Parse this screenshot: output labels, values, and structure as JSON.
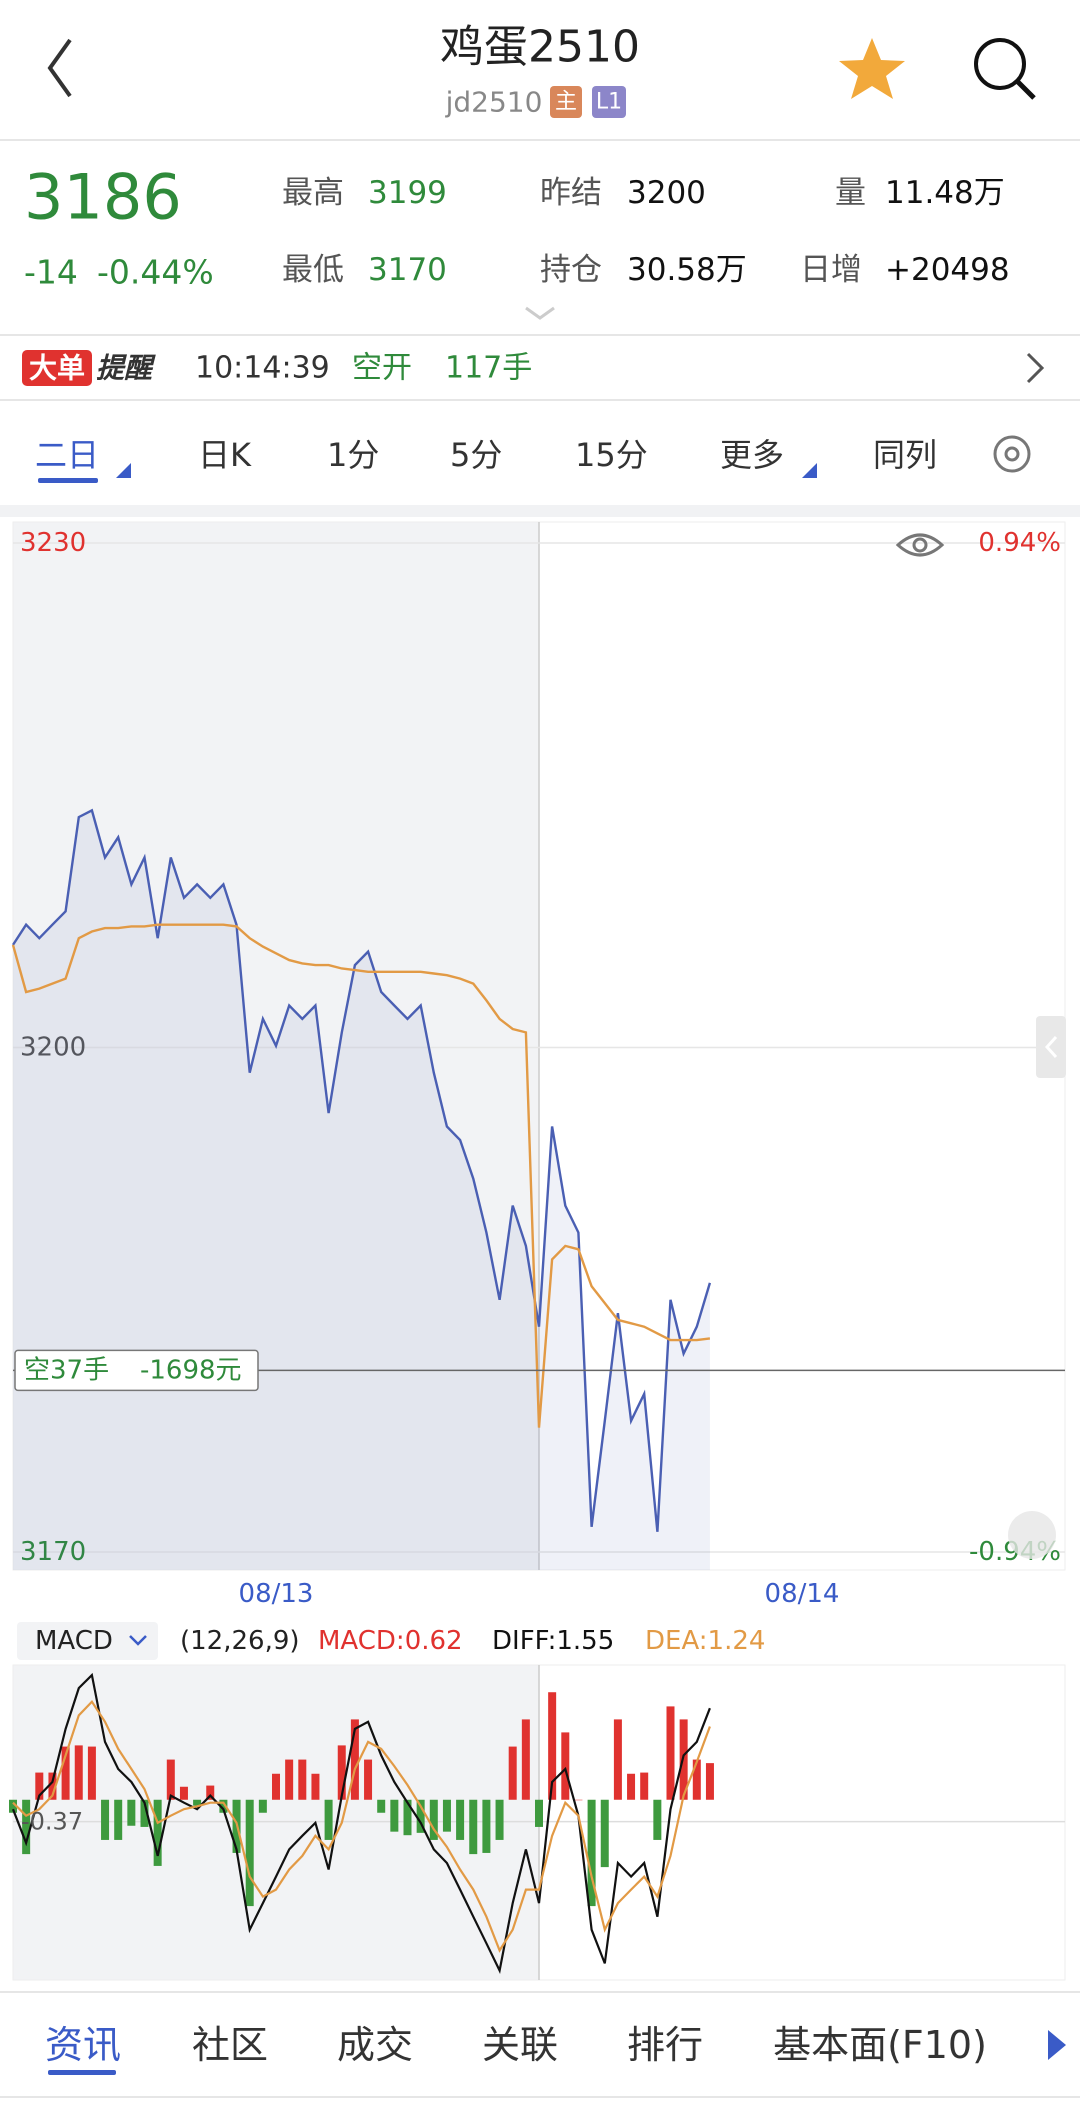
{
  "header": {
    "title": "鸡蛋2510",
    "code": "jd2510",
    "badges": [
      "主",
      "L1"
    ]
  },
  "quote": {
    "price": 3186,
    "change": -14,
    "change_pct": "-0.44%",
    "fields": [
      {
        "label": "最高",
        "value": 3199
      },
      {
        "label": "最低",
        "value": 3170
      },
      {
        "label": "昨结",
        "value": 3200
      },
      {
        "label": "持仓",
        "value": "30.58万"
      },
      {
        "label": "量",
        "value": "11.48万"
      },
      {
        "label": "日增",
        "value": "+20498"
      }
    ]
  },
  "alert": {
    "tag": "大单",
    "title": "提醒",
    "time": "10:14:39",
    "action": "空开",
    "volume": "117手"
  },
  "tabs": [
    "二日",
    "日K",
    "1分",
    "5分",
    "15分",
    "更多",
    "同列"
  ],
  "bottom_tabs": [
    "资讯",
    "社区",
    "成交",
    "关联",
    "排行",
    "基本面(F10)"
  ],
  "chart_data": [
    {
      "type": "line",
      "x": [
        0,
        0.025,
        0.05,
        0.075,
        0.1,
        0.125,
        0.15,
        0.175,
        0.2,
        0.225,
        0.25,
        0.275,
        0.3,
        0.325,
        0.35,
        0.375,
        0.4,
        0.425,
        0.45,
        0.475,
        0.5,
        0.525,
        0.55,
        0.575,
        0.6,
        0.625,
        0.65,
        0.675,
        0.7,
        0.725,
        0.75,
        0.775,
        0.8,
        0.825,
        0.85,
        0.875,
        0.9,
        0.925,
        0.95,
        0.975,
        1,
        1.025,
        1.05,
        1.075,
        1.1,
        1.125,
        1.15,
        1.175,
        1.2,
        1.225,
        1.25,
        1.275,
        1.3,
        1.325
      ],
      "xlim": [
        0,
        2
      ],
      "xticks": [
        {
          "value": 0.5,
          "label": "08/13"
        },
        {
          "value": 1.5,
          "label": "08/14"
        }
      ],
      "ylim": [
        3170,
        3230
      ],
      "yticks": [
        3230,
        3200,
        3170
      ],
      "y2lim": [
        -0.94,
        0.94
      ],
      "y2ticks": [
        {
          "value": 0.94,
          "label": "0.94%"
        },
        {
          "value": -0.94,
          "label": "-0.94%"
        }
      ],
      "series": [
        {
          "color": "#4a5fb3",
          "values": [
            3206.1,
            3207.3,
            3206.5,
            3207.3,
            3208.1,
            3213.7,
            3214.1,
            3211.3,
            3212.5,
            3209.7,
            3211.3,
            3206.5,
            3211.3,
            3208.9,
            3209.7,
            3208.9,
            3209.7,
            3207.3,
            3198.5,
            3201.7,
            3200.1,
            3202.5,
            3201.7,
            3202.5,
            3196.1,
            3200.9,
            3204.9,
            3205.7,
            3203.3,
            3202.5,
            3201.7,
            3202.5,
            3198.5,
            3195.3,
            3194.5,
            3192.2,
            3189.0,
            3185.0,
            3190.6,
            3188.2,
            3183.4,
            3195.3,
            3190.6,
            3189.0,
            3171.5,
            3177.8,
            3184.2,
            3177.8,
            3179.4,
            3171.2,
            3185.0,
            3181.8,
            3183.4,
            3186
          ]
        },
        {
          "color": "#e29a45",
          "values": [
            3206.1,
            3203.3,
            3203.5,
            3203.8,
            3204.1,
            3206.5,
            3206.9,
            3207.1,
            3207.1,
            3207.2,
            3207.2,
            3207.3,
            3207.3,
            3207.3,
            3207.3,
            3207.3,
            3207.3,
            3207.2,
            3206.5,
            3206.0,
            3205.6,
            3205.2,
            3205.0,
            3204.9,
            3204.9,
            3204.7,
            3204.6,
            3204.5,
            3204.5,
            3204.5,
            3204.5,
            3204.5,
            3204.4,
            3204.3,
            3204.1,
            3203.8,
            3202.8,
            3201.7,
            3201.1,
            3200.9,
            3177.4,
            3187.4,
            3188.2,
            3188.0,
            3185.8,
            3184.8,
            3183.8,
            3183.6,
            3183.4,
            3183.0,
            3182.6,
            3182.6,
            3182.6,
            3182.7
          ]
        }
      ],
      "annotation": {
        "text": "空37手",
        "pnl": "-1698元",
        "value": 3180.8
      }
    },
    {
      "type": "macd",
      "indicator": "MACD",
      "params": "(12,26,9)",
      "x": [
        0,
        0.025,
        0.05,
        0.075,
        0.1,
        0.125,
        0.15,
        0.175,
        0.2,
        0.225,
        0.25,
        0.275,
        0.3,
        0.325,
        0.35,
        0.375,
        0.4,
        0.425,
        0.45,
        0.475,
        0.5,
        0.525,
        0.55,
        0.575,
        0.6,
        0.625,
        0.65,
        0.675,
        0.7,
        0.725,
        0.75,
        0.775,
        0.8,
        0.825,
        0.85,
        0.875,
        0.9,
        0.925,
        0.95,
        0.975,
        1,
        1.025,
        1.05,
        1.075,
        1.1,
        1.125,
        1.15,
        1.175,
        1.2,
        1.225,
        1.25,
        1.275,
        1.3,
        1.325
      ],
      "xlim": [
        0,
        2
      ],
      "ylim": [
        -3.0,
        2.23
      ],
      "yticks": [
        -0.37
      ],
      "series": [
        {
          "name": "MACD:0.62",
          "type": "bar",
          "color": "#e0322f",
          "negative_color": "#3e9a3e",
          "values": [
            -0.22,
            -0.92,
            0.46,
            0.46,
            0.9,
            0.92,
            0.9,
            -0.68,
            -0.68,
            -0.44,
            -0.46,
            -1.12,
            0.68,
            0.22,
            -0.1,
            0.24,
            -0.22,
            -0.9,
            -1.8,
            -0.22,
            0.44,
            0.68,
            0.68,
            0.44,
            -0.68,
            0.92,
            1.36,
            0.68,
            -0.22,
            -0.54,
            -0.6,
            -0.56,
            -0.68,
            -0.54,
            -0.68,
            -0.92,
            -0.9,
            -0.68,
            0.9,
            1.36,
            -0.46,
            1.82,
            1.14,
            0,
            -1.8,
            -1.14,
            1.36,
            0.44,
            0.46,
            -0.68,
            1.58,
            1.36,
            0.68,
            0.62
          ]
        },
        {
          "name": "DIFF:1.55",
          "type": "line",
          "color": "#111111",
          "values": [
            -0.16,
            -0.73,
            0.07,
            0.3,
            1.2,
            1.89,
            2.11,
            0.98,
            0.52,
            0.3,
            -0.05,
            -0.95,
            0.07,
            -0.05,
            -0.16,
            0.07,
            -0.16,
            -0.84,
            -2.2,
            -1.75,
            -1.3,
            -0.84,
            -0.61,
            -0.39,
            -1.18,
            0.07,
            1.2,
            1.32,
            0.75,
            0.3,
            -0.05,
            -0.39,
            -0.84,
            -1.07,
            -1.52,
            -1.98,
            -2.43,
            -2.89,
            -1.75,
            -0.84,
            -1.75,
            0.3,
            0.52,
            -0.27,
            -2.2,
            -2.77,
            -1.07,
            -1.3,
            -1.07,
            -1.98,
            -0.16,
            0.75,
            0.98,
            1.55
          ]
        },
        {
          "name": "DEA:1.24",
          "type": "line",
          "color": "#e29a45",
          "values": [
            -0.05,
            -0.27,
            -0.16,
            0.07,
            0.75,
            1.43,
            1.66,
            1.32,
            0.86,
            0.52,
            0.18,
            -0.39,
            -0.27,
            -0.16,
            -0.11,
            -0.05,
            -0.05,
            -0.39,
            -1.3,
            -1.64,
            -1.52,
            -1.18,
            -0.95,
            -0.61,
            -0.84,
            -0.39,
            0.52,
            0.98,
            0.86,
            0.57,
            0.25,
            -0.11,
            -0.5,
            -0.8,
            -1.18,
            -1.52,
            -1.98,
            -2.55,
            -2.2,
            -1.52,
            -1.52,
            -0.61,
            -0.05,
            -0.27,
            -1.3,
            -2.2,
            -1.75,
            -1.52,
            -1.3,
            -1.64,
            -0.95,
            0.07,
            0.64,
            1.24
          ]
        }
      ]
    }
  ]
}
